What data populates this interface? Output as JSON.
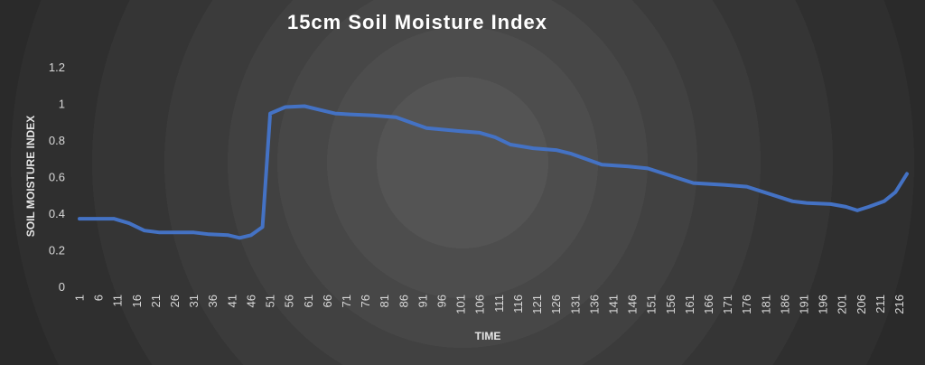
{
  "chart_data": {
    "type": "line",
    "title": "15cm Soil Moisture Index",
    "xlabel": "TIME",
    "ylabel": "SOIL MOISTURE INDEX",
    "ylim": [
      0,
      1.2
    ],
    "yticks": [
      "0",
      "0.2",
      "0.4",
      "0.6",
      "0.8",
      "1",
      "1.2"
    ],
    "x_tick_labels": [
      "1",
      "6",
      "11",
      "16",
      "21",
      "26",
      "31",
      "36",
      "41",
      "46",
      "51",
      "56",
      "61",
      "66",
      "71",
      "76",
      "81",
      "86",
      "91",
      "96",
      "101",
      "106",
      "111",
      "116",
      "121",
      "126",
      "131",
      "136",
      "141",
      "146",
      "151",
      "156",
      "161",
      "166",
      "171",
      "176",
      "181",
      "186",
      "191",
      "196",
      "201",
      "206",
      "211",
      "216"
    ],
    "x_range": [
      1,
      218
    ],
    "grid": false,
    "legend": "none",
    "line_color": "#4472C4",
    "series": [
      {
        "points": [
          [
            1,
            0.375
          ],
          [
            10,
            0.375
          ],
          [
            14,
            0.35
          ],
          [
            18,
            0.31
          ],
          [
            22,
            0.3
          ],
          [
            28,
            0.3
          ],
          [
            31,
            0.3
          ],
          [
            35,
            0.29
          ],
          [
            40,
            0.285
          ],
          [
            43,
            0.27
          ],
          [
            46,
            0.285
          ],
          [
            49,
            0.33
          ],
          [
            51,
            0.95
          ],
          [
            55,
            0.985
          ],
          [
            60,
            0.99
          ],
          [
            64,
            0.97
          ],
          [
            68,
            0.95
          ],
          [
            72,
            0.945
          ],
          [
            78,
            0.94
          ],
          [
            84,
            0.93
          ],
          [
            88,
            0.9
          ],
          [
            92,
            0.87
          ],
          [
            100,
            0.855
          ],
          [
            106,
            0.845
          ],
          [
            110,
            0.82
          ],
          [
            114,
            0.78
          ],
          [
            120,
            0.76
          ],
          [
            126,
            0.75
          ],
          [
            130,
            0.73
          ],
          [
            134,
            0.7
          ],
          [
            138,
            0.67
          ],
          [
            145,
            0.66
          ],
          [
            150,
            0.65
          ],
          [
            156,
            0.61
          ],
          [
            162,
            0.57
          ],
          [
            170,
            0.56
          ],
          [
            176,
            0.55
          ],
          [
            182,
            0.51
          ],
          [
            188,
            0.47
          ],
          [
            192,
            0.46
          ],
          [
            198,
            0.455
          ],
          [
            202,
            0.44
          ],
          [
            205,
            0.42
          ],
          [
            208,
            0.44
          ],
          [
            212,
            0.47
          ],
          [
            215,
            0.52
          ],
          [
            218,
            0.62
          ]
        ]
      }
    ]
  }
}
